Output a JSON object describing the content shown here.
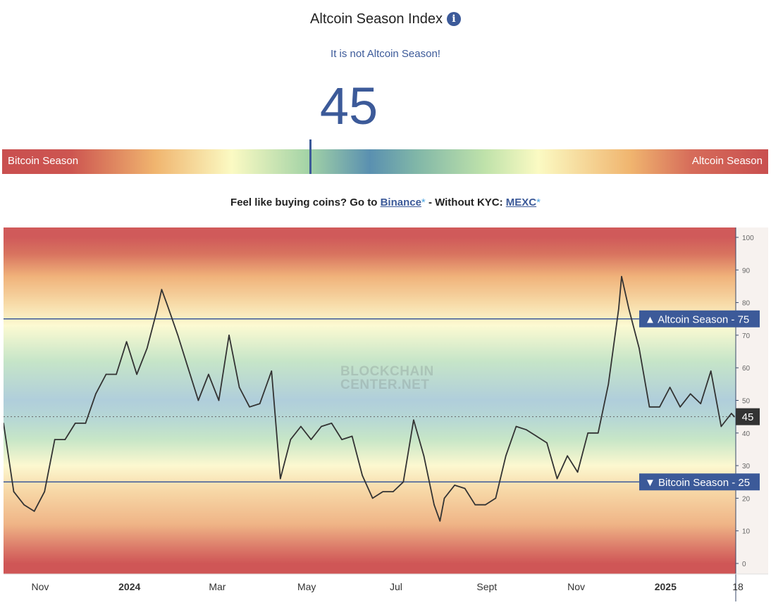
{
  "header": {
    "title": "Altcoin Season Index",
    "info_icon": "info-circle-icon",
    "status": "It is not Altcoin Season!",
    "index_value": 45,
    "index_value_label": "45",
    "gauge_left_label": "Bitcoin Season",
    "gauge_right_label": "Altcoin Season"
  },
  "promo": {
    "prefix": "Feel like buying coins? Go to",
    "link1": "Binance",
    "star": "*",
    "middle": "- Without KYC:",
    "link2": "MEXC"
  },
  "watermark": {
    "line1": "BLOCKCHAIN",
    "line2": "CENTER.NET"
  },
  "colors": {
    "accent": "#3c5a99",
    "line": "#333333",
    "current_box": "#333333"
  },
  "chart_data": {
    "type": "line",
    "ylim": [
      0,
      100
    ],
    "yticks": [
      "0",
      "10",
      "20",
      "30",
      "40",
      "50",
      "60",
      "70",
      "80",
      "90",
      "100"
    ],
    "xtick_labels": [
      {
        "date": "2023-11-01",
        "label": "Nov",
        "bold": false
      },
      {
        "date": "2024-01-01",
        "label": "2024",
        "bold": true
      },
      {
        "date": "2024-03-01",
        "label": "Mar",
        "bold": false
      },
      {
        "date": "2024-05-01",
        "label": "May",
        "bold": false
      },
      {
        "date": "2024-07-01",
        "label": "Jul",
        "bold": false
      },
      {
        "date": "2024-09-01",
        "label": "Sept",
        "bold": false
      },
      {
        "date": "2024-11-01",
        "label": "Nov",
        "bold": false
      },
      {
        "date": "2025-01-01",
        "label": "2025",
        "bold": true
      },
      {
        "date": "2025-02-17",
        "label": "18",
        "bold": false
      }
    ],
    "xlim": [
      "2023-10-07",
      "2025-02-17"
    ],
    "grid": false,
    "background": "red-yellow-green-blue band gradient",
    "reference_lines": [
      {
        "value": 75,
        "label": "Altcoin Season",
        "arrow": "▲",
        "text": "75",
        "sep": "-"
      },
      {
        "value": 25,
        "label": "Bitcoin Season",
        "arrow": "▼",
        "text": "25",
        "sep": "-"
      }
    ],
    "current": {
      "value": 45,
      "label": "45"
    },
    "points": [
      [
        "2023-10-07",
        43
      ],
      [
        "2023-10-14",
        22
      ],
      [
        "2023-10-21",
        18
      ],
      [
        "2023-10-28",
        16
      ],
      [
        "2023-11-04",
        22
      ],
      [
        "2023-11-11",
        38
      ],
      [
        "2023-11-18",
        38
      ],
      [
        "2023-11-25",
        43
      ],
      [
        "2023-12-02",
        43
      ],
      [
        "2023-12-09",
        52
      ],
      [
        "2023-12-16",
        58
      ],
      [
        "2023-12-23",
        58
      ],
      [
        "2023-12-30",
        68
      ],
      [
        "2024-01-06",
        58
      ],
      [
        "2024-01-13",
        66
      ],
      [
        "2024-01-20",
        78
      ],
      [
        "2024-01-23",
        84
      ],
      [
        "2024-01-27",
        79
      ],
      [
        "2024-02-03",
        70
      ],
      [
        "2024-02-10",
        60
      ],
      [
        "2024-02-17",
        50
      ],
      [
        "2024-02-24",
        58
      ],
      [
        "2024-03-02",
        50
      ],
      [
        "2024-03-09",
        70
      ],
      [
        "2024-03-16",
        54
      ],
      [
        "2024-03-23",
        48
      ],
      [
        "2024-03-30",
        49
      ],
      [
        "2024-04-07",
        59
      ],
      [
        "2024-04-13",
        26
      ],
      [
        "2024-04-20",
        38
      ],
      [
        "2024-04-27",
        42
      ],
      [
        "2024-05-04",
        38
      ],
      [
        "2024-05-11",
        42
      ],
      [
        "2024-05-18",
        43
      ],
      [
        "2024-05-25",
        38
      ],
      [
        "2024-06-01",
        39
      ],
      [
        "2024-06-08",
        27
      ],
      [
        "2024-06-15",
        20
      ],
      [
        "2024-06-22",
        22
      ],
      [
        "2024-06-29",
        22
      ],
      [
        "2024-07-06",
        25
      ],
      [
        "2024-07-13",
        44
      ],
      [
        "2024-07-20",
        33
      ],
      [
        "2024-07-27",
        18
      ],
      [
        "2024-07-31",
        13
      ],
      [
        "2024-08-03",
        20
      ],
      [
        "2024-08-10",
        24
      ],
      [
        "2024-08-17",
        23
      ],
      [
        "2024-08-24",
        18
      ],
      [
        "2024-08-31",
        18
      ],
      [
        "2024-09-07",
        20
      ],
      [
        "2024-09-14",
        33
      ],
      [
        "2024-09-21",
        42
      ],
      [
        "2024-09-28",
        41
      ],
      [
        "2024-10-05",
        39
      ],
      [
        "2024-10-12",
        37
      ],
      [
        "2024-10-19",
        26
      ],
      [
        "2024-10-26",
        33
      ],
      [
        "2024-11-02",
        28
      ],
      [
        "2024-11-09",
        40
      ],
      [
        "2024-11-16",
        40
      ],
      [
        "2024-11-23",
        55
      ],
      [
        "2024-11-30",
        78
      ],
      [
        "2024-12-02",
        88
      ],
      [
        "2024-12-07",
        78
      ],
      [
        "2024-12-14",
        66
      ],
      [
        "2024-12-21",
        48
      ],
      [
        "2024-12-28",
        48
      ],
      [
        "2025-01-04",
        54
      ],
      [
        "2025-01-11",
        48
      ],
      [
        "2025-01-18",
        52
      ],
      [
        "2025-01-25",
        49
      ],
      [
        "2025-02-01",
        59
      ],
      [
        "2025-02-08",
        42
      ],
      [
        "2025-02-15",
        46
      ],
      [
        "2025-02-17",
        45
      ]
    ]
  }
}
